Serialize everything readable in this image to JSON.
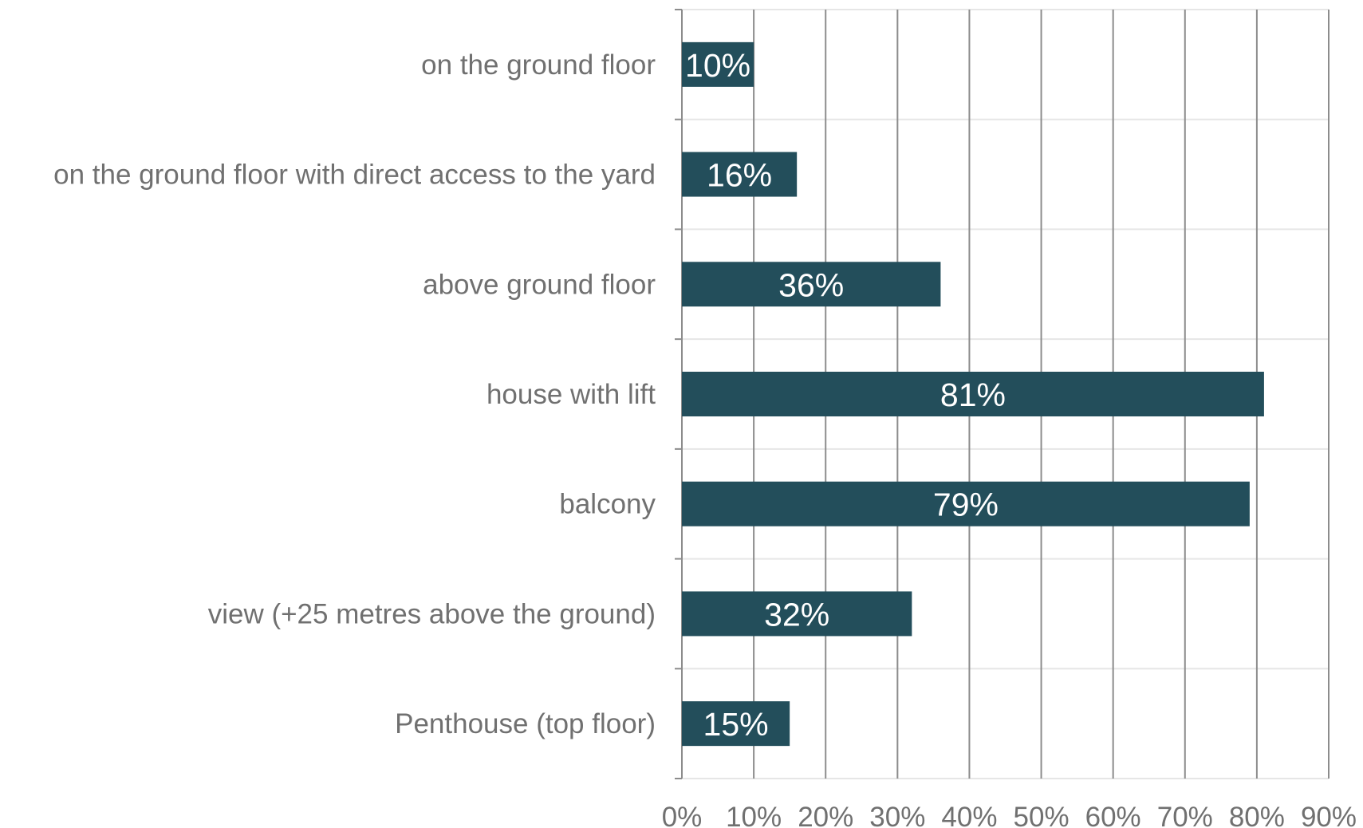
{
  "chart_data": {
    "type": "bar",
    "orientation": "horizontal",
    "categories": [
      "on the ground floor",
      "on the ground floor with direct access to the yard",
      "above ground floor",
      "house with lift",
      "balcony",
      "view (+25 metres above the ground)",
      "Penthouse (top floor)"
    ],
    "values": [
      10,
      16,
      36,
      81,
      79,
      32,
      15
    ],
    "data_labels": [
      "10%",
      "16%",
      "36%",
      "81%",
      "79%",
      "32%",
      "15%"
    ],
    "x_ticks": [
      "0%",
      "10%",
      "20%",
      "30%",
      "40%",
      "50%",
      "60%",
      "70%",
      "80%",
      "90%"
    ],
    "xlim": [
      0,
      90
    ],
    "title": "",
    "xlabel": "",
    "ylabel": "",
    "grid": true,
    "legend": "none",
    "colors": {
      "bar": "#234e5b",
      "grid_vertical": "#8c8c8c",
      "grid_horizontal": "#e6e6e6",
      "text": "#707070",
      "data_label": "#ffffff"
    }
  }
}
